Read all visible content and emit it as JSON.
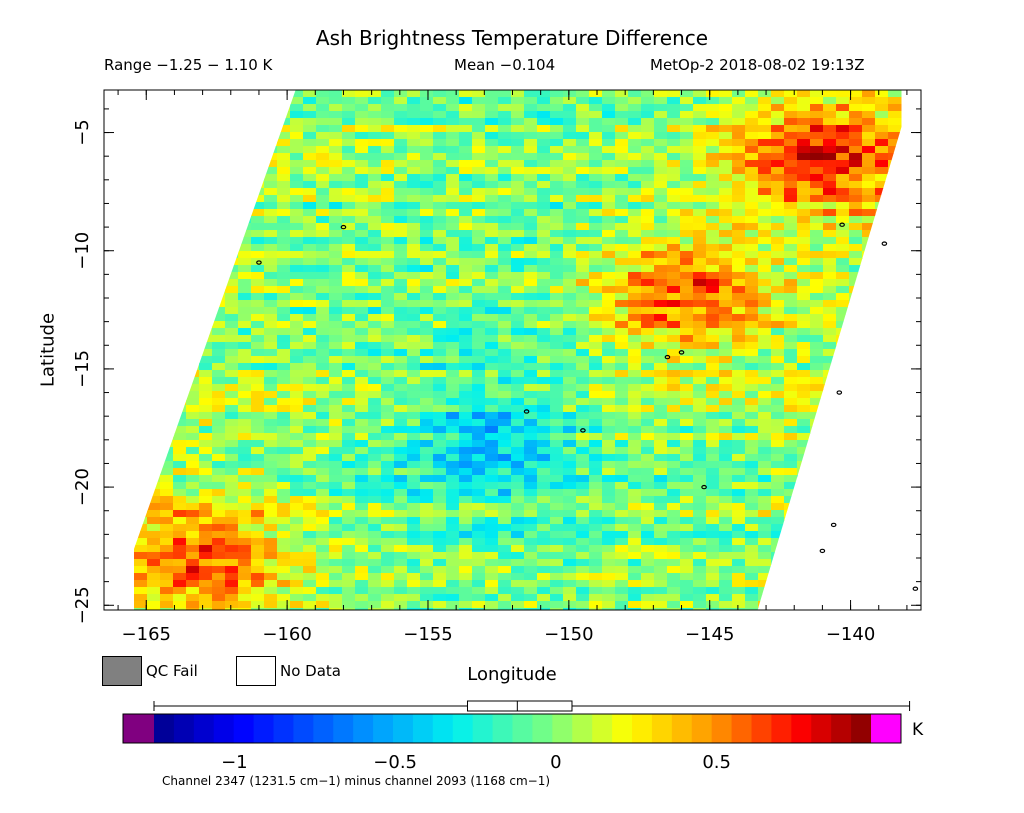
{
  "header": {
    "title": "Ash Brightness Temperature Difference",
    "range": "Range −1.25 − 1.10 K",
    "mean": "Mean −0.104",
    "satellite_time": "MetOp-2 2018-08-02 19:13Z"
  },
  "axes": {
    "xlabel": "Longitude",
    "ylabel": "Latitude",
    "x_ticks": [
      "−165",
      "−160",
      "−155",
      "−150",
      "−145",
      "−140"
    ],
    "x_tick_values": [
      -165,
      -160,
      -155,
      -150,
      -145,
      -140
    ],
    "y_ticks": [
      "−5",
      "−10",
      "−15",
      "−20",
      "−25"
    ],
    "y_tick_values": [
      -5,
      -10,
      -15,
      -20,
      -25
    ],
    "xlim": [
      -166.5,
      -137.5
    ],
    "ylim": [
      -25.2,
      -3.2
    ]
  },
  "legend": {
    "qc_fail": "QC Fail",
    "no_data": "No Data",
    "qc_fail_color": "#808080",
    "no_data_color": "#ffffff"
  },
  "colorbar": {
    "ticks": [
      "−1",
      "−0.5",
      "0",
      "0.5"
    ],
    "tick_values": [
      -1,
      -0.5,
      0,
      0.5
    ],
    "vmin": -1.25,
    "vmax": 0.98,
    "units": "K",
    "under_color": "#800080",
    "over_color": "#ff00ff",
    "boxplot": {
      "whisker_low": -1.25,
      "q1": -0.275,
      "median": -0.12,
      "q3": 0.05,
      "whisker_high": 1.1
    }
  },
  "footer": "Channel 2347 (1231.5 cm−1) minus channel 2093 (1168 cm−1)",
  "chart_data": {
    "type": "heatmap",
    "title": "Ash Brightness Temperature Difference",
    "xlabel": "Longitude",
    "ylabel": "Latitude",
    "xlim": [
      -166.5,
      -137.5
    ],
    "ylim": [
      -25.2,
      -3.2
    ],
    "value_range": [
      -1.25,
      1.1
    ],
    "mean": -0.104,
    "units": "K",
    "swath_corners_lonlat": [
      [
        -159.7,
        -3.2
      ],
      [
        -137.8,
        -3.2
      ],
      [
        -143.3,
        -25.2
      ],
      [
        -166.2,
        -25.2
      ]
    ],
    "features": [
      {
        "name": "warm band east of center",
        "lon": -146,
        "lat": -12,
        "value": 0.6
      },
      {
        "name": "warm band lower-left",
        "lon": -163,
        "lat": -23,
        "value": 0.5
      },
      {
        "name": "warm edge upper-right",
        "lon": -141,
        "lat": -6,
        "value": 0.6
      },
      {
        "name": "cool streak center",
        "lon": -153,
        "lat": -18,
        "value": -0.5
      }
    ],
    "islands_lonlat": [
      [
        -158,
        -9
      ],
      [
        -161,
        -10.5
      ],
      [
        -146.5,
        -14.5
      ],
      [
        -146,
        -14.3
      ],
      [
        -140.3,
        -8.9
      ],
      [
        -138.8,
        -9.7
      ],
      [
        -140.4,
        -16
      ],
      [
        -149.5,
        -17.6
      ],
      [
        -151.5,
        -16.8
      ],
      [
        -145.2,
        -20
      ],
      [
        -140.6,
        -21.6
      ],
      [
        -141,
        -22.7
      ],
      [
        -137.7,
        -24.3
      ]
    ]
  }
}
